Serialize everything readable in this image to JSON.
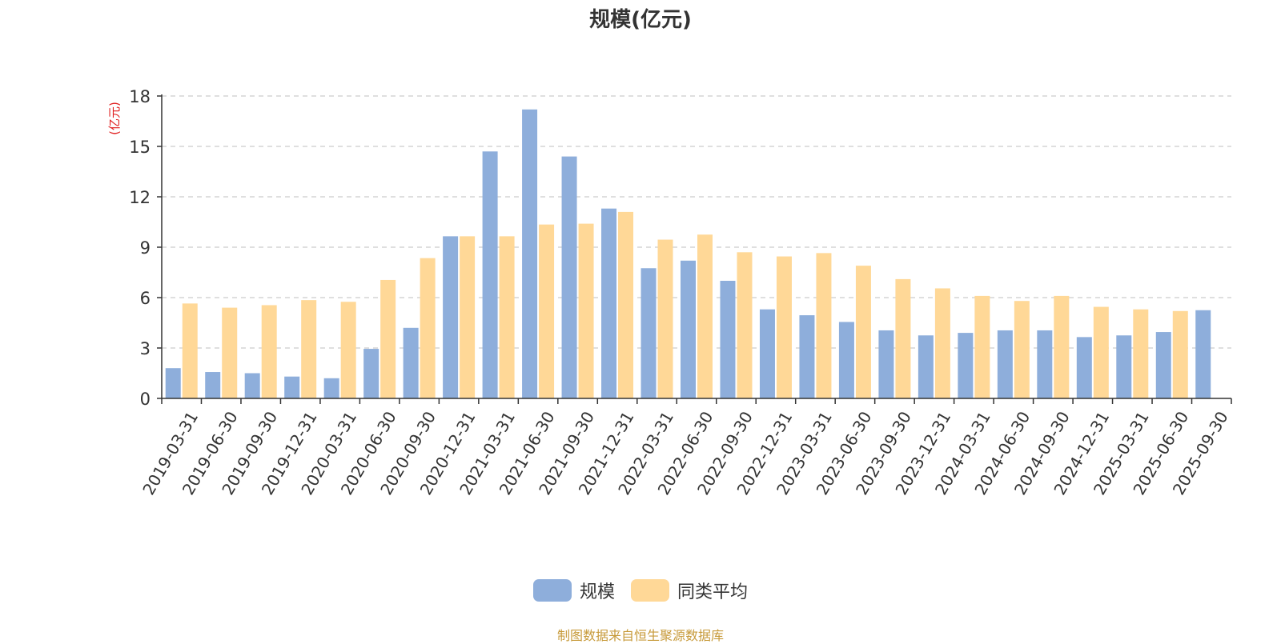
{
  "title": "规模(亿元)",
  "source": "制图数据来自恒生聚源数据库",
  "source_color": "#c79a3a",
  "colors": {
    "scale": "#8eaedb",
    "peer_avg": "#ffd897",
    "unit_label": "#e02020",
    "axis": "#333333",
    "grid": "#cccccc",
    "text": "#333333"
  },
  "chart_data": {
    "type": "bar",
    "title": "规模(亿元)",
    "ylabel": "(亿元)",
    "xlabel": "",
    "ylim": [
      0,
      18
    ],
    "yticks": [
      0,
      3,
      6,
      9,
      12,
      15,
      18
    ],
    "grid": true,
    "legend_position": "bottom-center",
    "categories": [
      "2019-03-31",
      "2019-06-30",
      "2019-09-30",
      "2019-12-31",
      "2020-03-31",
      "2020-06-30",
      "2020-09-30",
      "2020-12-31",
      "2021-03-31",
      "2021-06-30",
      "2021-09-30",
      "2021-12-31",
      "2022-03-31",
      "2022-06-30",
      "2022-09-30",
      "2022-12-31",
      "2023-03-31",
      "2023-06-30",
      "2023-09-30",
      "2023-12-31",
      "2024-03-31",
      "2024-06-30",
      "2024-09-30",
      "2024-12-31",
      "2025-03-31",
      "2025-06-30",
      "2025-09-30"
    ],
    "series": [
      {
        "name": "规模",
        "values": [
          1.8,
          1.57,
          1.5,
          1.3,
          1.2,
          2.95,
          4.2,
          9.65,
          14.7,
          17.2,
          14.4,
          11.3,
          7.75,
          8.2,
          7.0,
          5.3,
          4.95,
          4.55,
          4.05,
          3.75,
          3.9,
          4.05,
          4.05,
          3.65,
          3.75,
          3.95,
          5.25
        ]
      },
      {
        "name": "同类平均",
        "values": [
          5.65,
          5.4,
          5.55,
          5.85,
          5.75,
          7.05,
          8.35,
          9.65,
          9.65,
          10.35,
          10.4,
          11.1,
          9.45,
          9.75,
          8.7,
          8.45,
          8.65,
          7.9,
          7.1,
          6.55,
          6.1,
          5.8,
          6.1,
          5.45,
          5.3,
          5.2,
          null
        ]
      }
    ]
  }
}
